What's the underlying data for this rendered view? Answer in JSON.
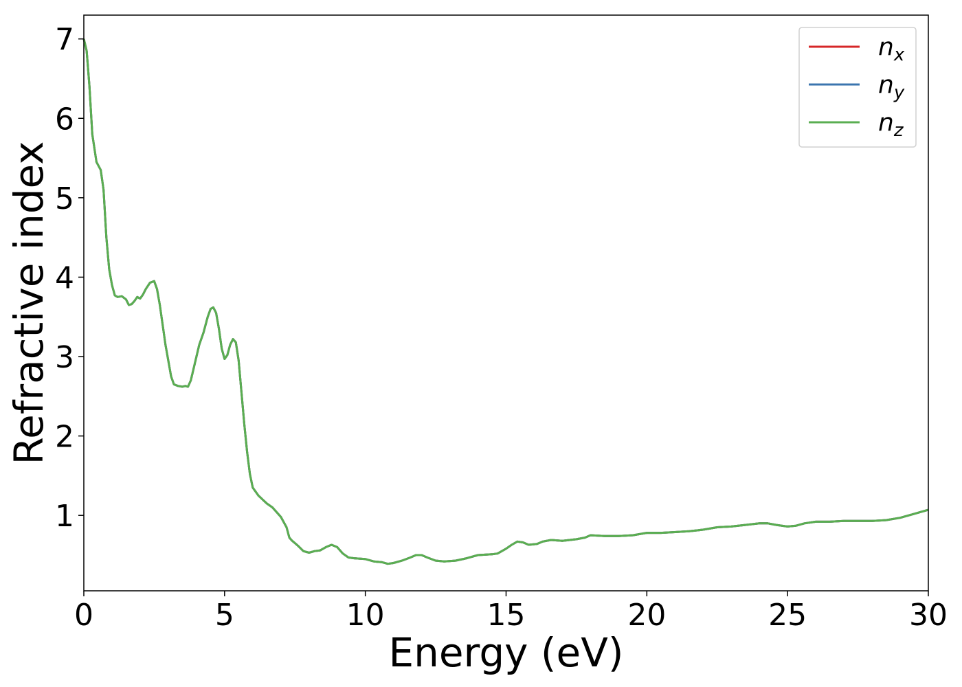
{
  "chart_data": {
    "type": "line",
    "title": "",
    "xlabel": "Energy (eV)",
    "ylabel": "Refractive index",
    "xlim": [
      0,
      30
    ],
    "ylim": [
      0.05,
      7.3
    ],
    "xticks": [
      0,
      5,
      10,
      15,
      20,
      25,
      30
    ],
    "yticks": [
      1,
      2,
      3,
      4,
      5,
      6,
      7
    ],
    "grid": false,
    "legend_position": "top-right",
    "series": [
      {
        "name": "n_x",
        "label_base": "n",
        "label_sub": "x",
        "color": "#d62728",
        "x": [
          0,
          0.1,
          0.2,
          0.3,
          0.45,
          0.6,
          0.7,
          0.8,
          0.9,
          1.0,
          1.1,
          1.2,
          1.35,
          1.5,
          1.6,
          1.7,
          1.8,
          1.9,
          2.0,
          2.1,
          2.2,
          2.35,
          2.5,
          2.6,
          2.7,
          2.8,
          2.9,
          3.0,
          3.1,
          3.2,
          3.35,
          3.5,
          3.6,
          3.7,
          3.8,
          3.9,
          4.0,
          4.1,
          4.25,
          4.4,
          4.5,
          4.6,
          4.7,
          4.8,
          4.9,
          5.0,
          5.1,
          5.2,
          5.3,
          5.4,
          5.5,
          5.6,
          5.7,
          5.8,
          5.9,
          6.0,
          6.1,
          6.2,
          6.35,
          6.5,
          6.7,
          6.9,
          7.0,
          7.2,
          7.3,
          7.4,
          7.5,
          7.6,
          7.8,
          8.0,
          8.2,
          8.4,
          8.6,
          8.8,
          9.0,
          9.2,
          9.4,
          9.6,
          10.0,
          10.3,
          10.6,
          10.8,
          11.0,
          11.3,
          11.6,
          11.8,
          12.0,
          12.2,
          12.5,
          12.8,
          13.2,
          13.6,
          14.0,
          14.5,
          14.7,
          15.0,
          15.2,
          15.4,
          15.6,
          15.8,
          16.1,
          16.3,
          16.6,
          17.0,
          17.5,
          17.8,
          18.0,
          18.5,
          19.0,
          19.5,
          20.0,
          20.5,
          21.0,
          21.5,
          22.0,
          22.5,
          23.0,
          23.5,
          24.0,
          24.3,
          24.6,
          25.0,
          25.3,
          25.6,
          26.0,
          26.5,
          27.0,
          27.5,
          28.0,
          28.5,
          29.0,
          29.5,
          30.0
        ],
        "y": [
          7.0,
          6.85,
          6.4,
          5.8,
          5.45,
          5.35,
          5.1,
          4.5,
          4.1,
          3.9,
          3.77,
          3.75,
          3.76,
          3.72,
          3.65,
          3.66,
          3.7,
          3.75,
          3.73,
          3.78,
          3.85,
          3.93,
          3.95,
          3.85,
          3.65,
          3.4,
          3.15,
          2.95,
          2.75,
          2.65,
          2.63,
          2.62,
          2.63,
          2.62,
          2.7,
          2.85,
          3.0,
          3.15,
          3.3,
          3.5,
          3.6,
          3.62,
          3.55,
          3.35,
          3.1,
          2.97,
          3.02,
          3.15,
          3.22,
          3.18,
          2.95,
          2.55,
          2.15,
          1.8,
          1.52,
          1.35,
          1.3,
          1.25,
          1.2,
          1.15,
          1.1,
          1.02,
          0.98,
          0.85,
          0.72,
          0.68,
          0.65,
          0.62,
          0.55,
          0.53,
          0.55,
          0.56,
          0.6,
          0.63,
          0.6,
          0.52,
          0.47,
          0.46,
          0.45,
          0.42,
          0.41,
          0.39,
          0.4,
          0.43,
          0.47,
          0.5,
          0.5,
          0.47,
          0.43,
          0.42,
          0.43,
          0.46,
          0.5,
          0.51,
          0.52,
          0.58,
          0.63,
          0.67,
          0.66,
          0.63,
          0.64,
          0.67,
          0.69,
          0.68,
          0.7,
          0.72,
          0.75,
          0.74,
          0.74,
          0.75,
          0.78,
          0.78,
          0.79,
          0.8,
          0.82,
          0.85,
          0.86,
          0.88,
          0.9,
          0.9,
          0.88,
          0.86,
          0.87,
          0.9,
          0.92,
          0.92,
          0.93,
          0.93,
          0.93,
          0.94,
          0.97,
          1.02,
          1.07
        ]
      },
      {
        "name": "n_y",
        "label_base": "n",
        "label_sub": "y",
        "color": "#3b75af",
        "same_as": "n_x"
      },
      {
        "name": "n_z",
        "label_base": "n",
        "label_sub": "z",
        "color": "#5aae51",
        "same_as": "n_x"
      }
    ]
  }
}
